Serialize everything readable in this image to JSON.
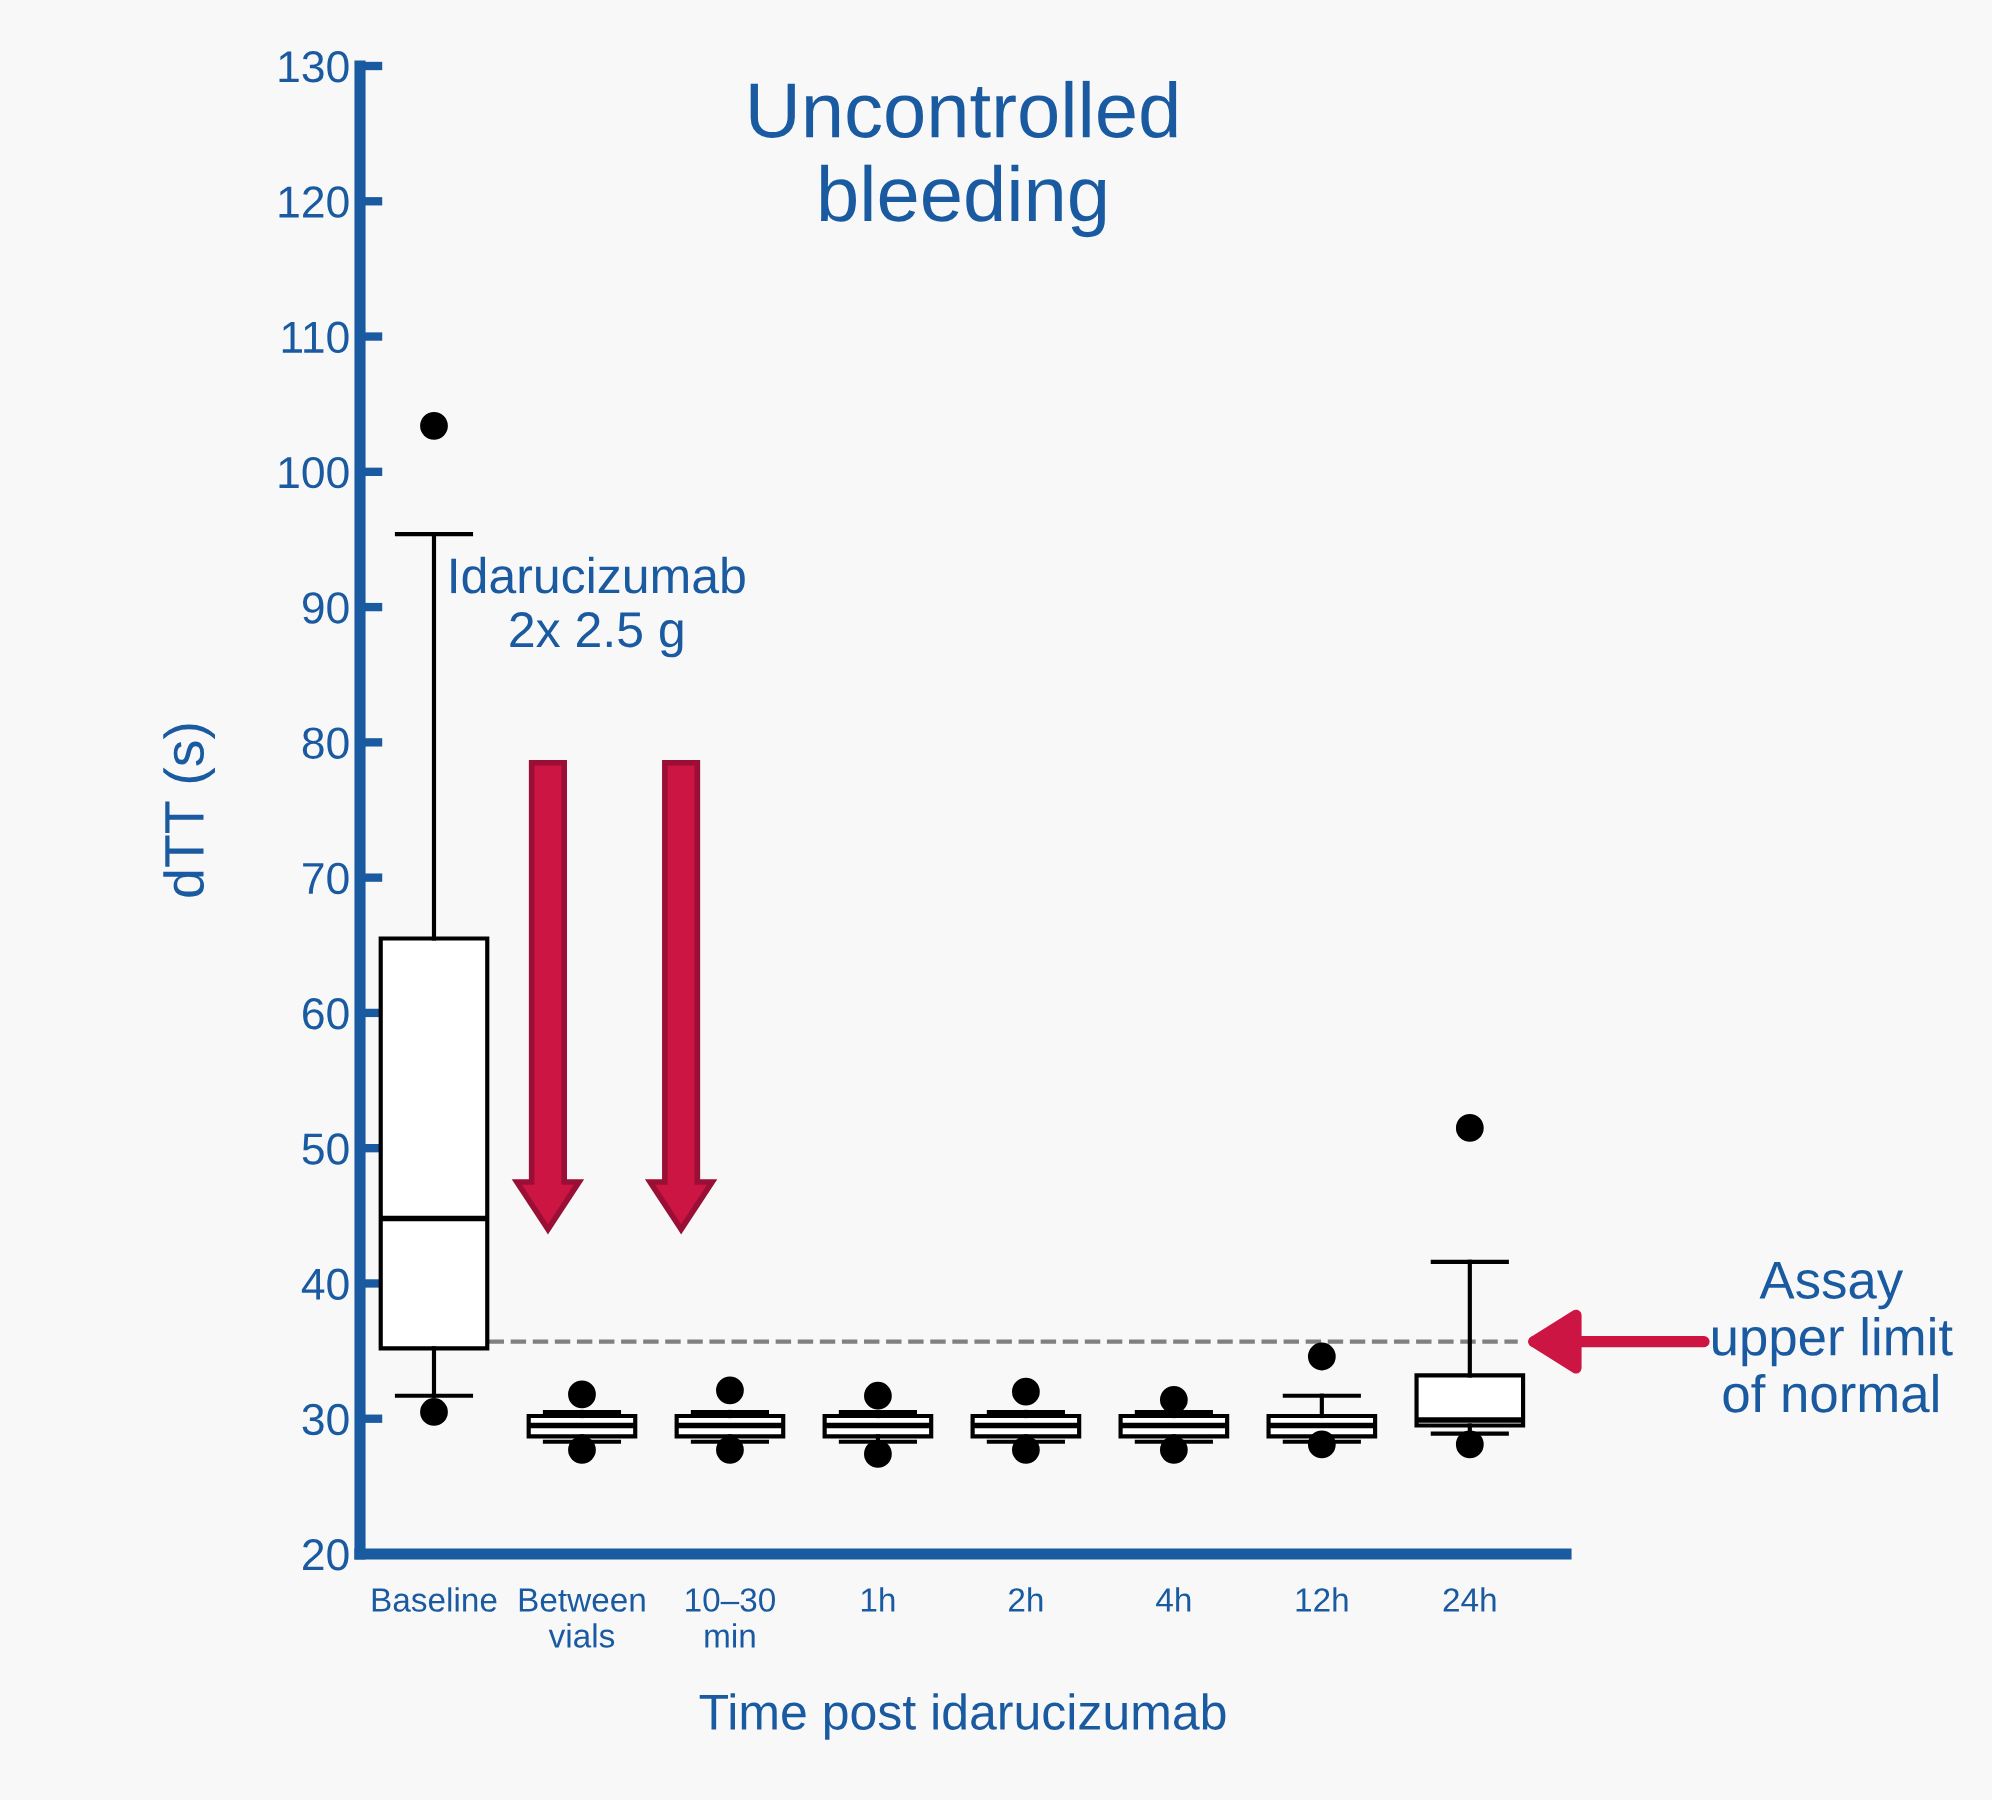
{
  "chart_data": {
    "type": "box",
    "title": "Uncontrolled\nbleeding",
    "xlabel": "Time post idarucizumab",
    "ylabel": "dTT (s)",
    "categories": [
      "Baseline",
      "Between\nvials",
      "10–30\nmin",
      "1h",
      "2h",
      "4h",
      "12h",
      "24h"
    ],
    "boxes": [
      {
        "low": 31.7,
        "q1": 35.2,
        "median": 44.8,
        "q3": 65.5,
        "high": 95.4,
        "outliers": [
          103.4,
          30.5
        ]
      },
      {
        "low": 28.3,
        "q1": 28.7,
        "median": 29.5,
        "q3": 30.2,
        "high": 30.5,
        "outliers": [
          31.8,
          27.7
        ]
      },
      {
        "low": 28.3,
        "q1": 28.7,
        "median": 29.5,
        "q3": 30.2,
        "high": 30.5,
        "outliers": [
          32.1,
          27.7
        ]
      },
      {
        "low": 28.3,
        "q1": 28.7,
        "median": 29.5,
        "q3": 30.2,
        "high": 30.5,
        "outliers": [
          31.7,
          27.4
        ]
      },
      {
        "low": 28.3,
        "q1": 28.7,
        "median": 29.5,
        "q3": 30.2,
        "high": 30.5,
        "outliers": [
          32.0,
          27.7
        ]
      },
      {
        "low": 28.3,
        "q1": 28.7,
        "median": 29.5,
        "q3": 30.2,
        "high": 30.5,
        "outliers": [
          31.4,
          27.7
        ]
      },
      {
        "low": 28.3,
        "q1": 28.7,
        "median": 29.5,
        "q3": 30.2,
        "high": 31.7,
        "outliers": [
          34.6,
          28.1
        ]
      },
      {
        "low": 28.9,
        "q1": 29.5,
        "median": 29.9,
        "q3": 33.2,
        "high": 41.6,
        "outliers": [
          51.5,
          28.1
        ]
      }
    ],
    "ylim": [
      20,
      130
    ],
    "yticks": [
      20,
      30,
      40,
      50,
      60,
      70,
      80,
      90,
      100,
      110,
      120,
      130
    ],
    "grid": false,
    "ref_lines": [
      {
        "axis": "y",
        "value": 35.7,
        "label": "Assay\nupper limit\nof normal",
        "color": "#808080",
        "line_style": "dashed"
      }
    ],
    "annotations": [
      "Idarucizumab\n2x 2.5 g"
    ]
  }
}
